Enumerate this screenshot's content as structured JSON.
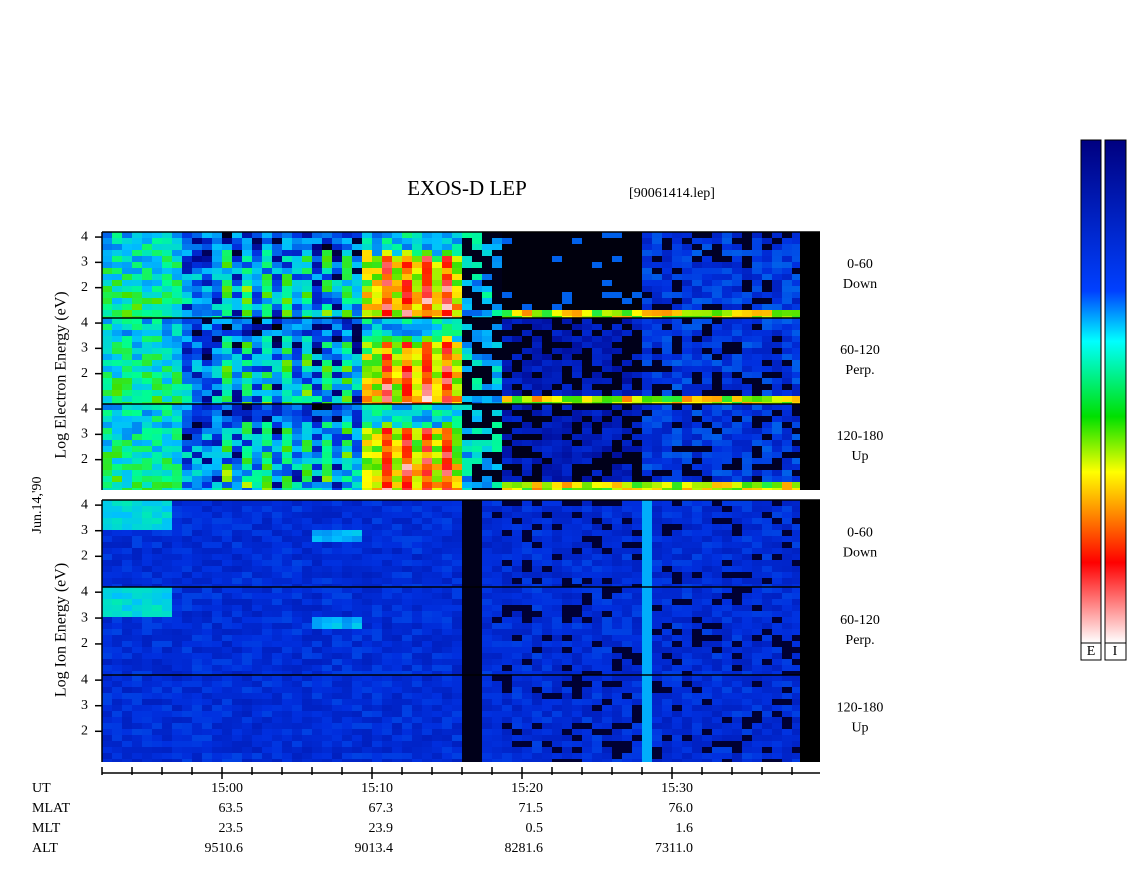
{
  "title": "EXOS-D LEP",
  "file": "[90061414.lep]",
  "date_label": "Jun.14,'90",
  "panel_yticks": [
    2,
    3,
    4
  ],
  "panel_ylim": [
    0.8,
    4.2
  ],
  "groups": [
    {
      "ylabel": "Log Electron Energy (eV)",
      "panels": [
        [
          "0-60",
          "Down"
        ],
        [
          "60-120",
          "Perp."
        ],
        [
          "120-180",
          "Up"
        ]
      ]
    },
    {
      "ylabel": "Log Ion Energy (eV)",
      "panels": [
        [
          "0-60",
          "Down"
        ],
        [
          "60-120",
          "Perp."
        ],
        [
          "120-180",
          "Up"
        ]
      ]
    }
  ],
  "axis_rows": {
    "labels": [
      "UT",
      "MLAT",
      "MLT",
      "ALT"
    ],
    "columns": [
      [
        "15:00",
        "63.5",
        "23.5",
        "9510.6"
      ],
      [
        "15:10",
        "67.3",
        "23.9",
        "9013.4"
      ],
      [
        "15:20",
        "71.5",
        "0.5",
        "8281.6"
      ],
      [
        "15:30",
        "76.0",
        "1.6",
        "7311.0"
      ]
    ]
  },
  "colorbar_labels": [
    "E",
    "I"
  ]
}
